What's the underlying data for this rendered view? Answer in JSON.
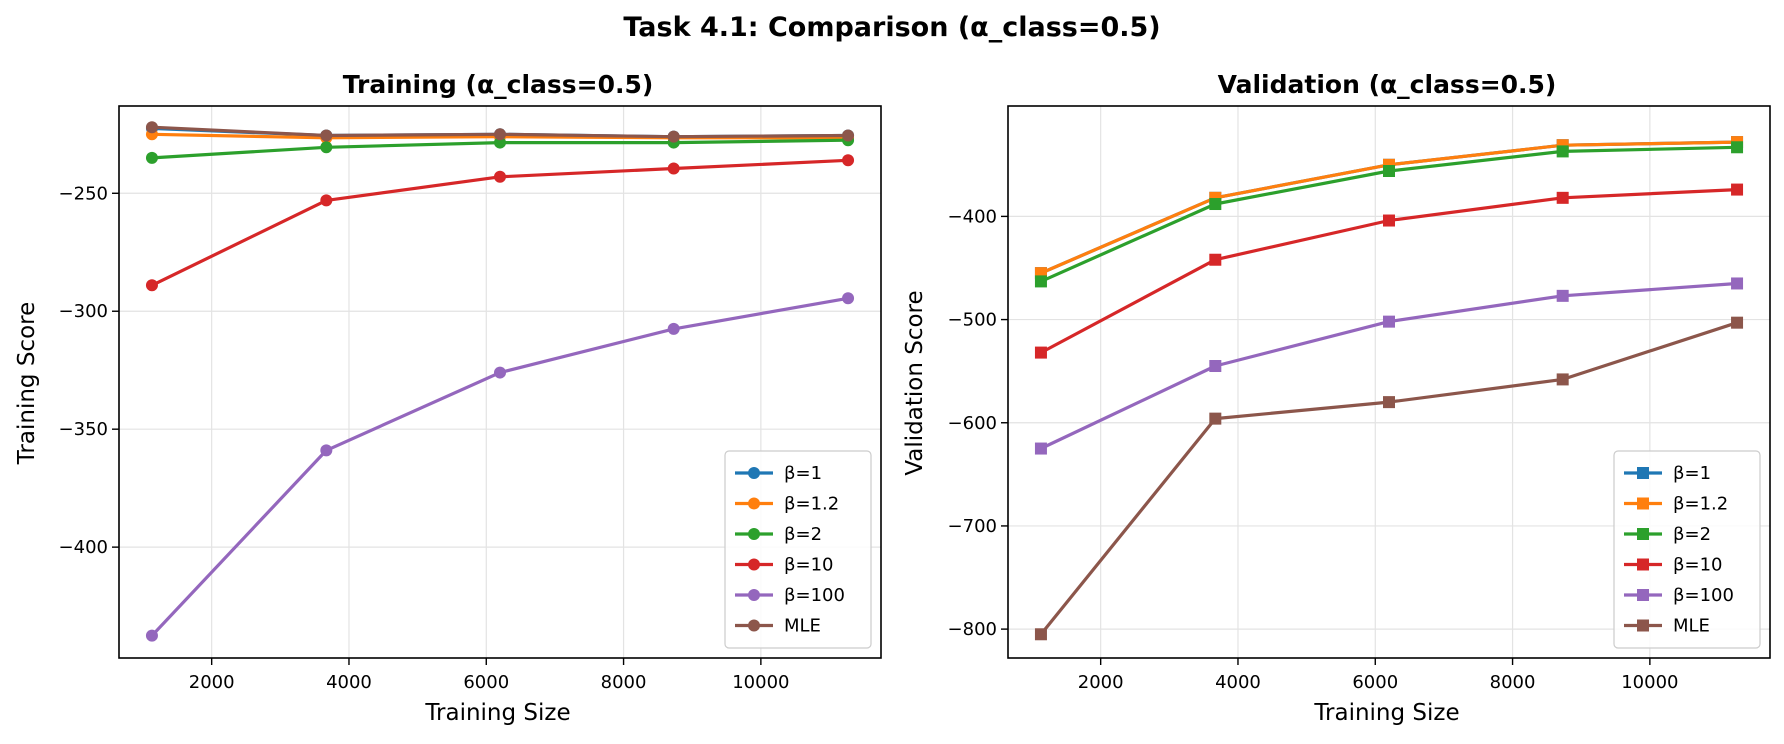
{
  "figure": {
    "title": "Task 4.1: Comparison (α_class=0.5)"
  },
  "chart_data": [
    {
      "type": "line",
      "title": "Training (α_class=0.5)",
      "xlabel": "Training Size",
      "ylabel": "Training Score",
      "xlim": [
        650,
        11750
      ],
      "ylim": [
        -447,
        -213
      ],
      "xticks": [
        2000,
        4000,
        6000,
        8000,
        10000
      ],
      "yticks": [
        -250,
        -300,
        -350,
        -400
      ],
      "xtick_labels": [
        "2000",
        "4000",
        "6000",
        "8000",
        "10000"
      ],
      "ytick_labels": [
        "−250",
        "−300",
        "−350",
        "−400"
      ],
      "grid": true,
      "marker": "circle",
      "legend_position": "lower right",
      "x": [
        1130,
        3670,
        6200,
        8730,
        11270
      ],
      "series": [
        {
          "name": "β=1",
          "color": "#1f77b4",
          "values": [
            -222.5,
            -225.5,
            -225,
            -226,
            -225.5
          ]
        },
        {
          "name": "β=1.2",
          "color": "#ff7f0e",
          "values": [
            -225,
            -226.5,
            -226,
            -226.5,
            -226.5
          ]
        },
        {
          "name": "β=2",
          "color": "#2ca02c",
          "values": [
            -235,
            -230.5,
            -228.5,
            -228.5,
            -227.5
          ]
        },
        {
          "name": "β=10",
          "color": "#d62728",
          "values": [
            -289,
            -253,
            -243,
            -239.5,
            -236
          ]
        },
        {
          "name": "β=100",
          "color": "#9467bd",
          "values": [
            -437.5,
            -359,
            -326,
            -307.5,
            -294.5
          ]
        },
        {
          "name": "MLE",
          "color": "#8c564b",
          "values": [
            -222,
            -225.5,
            -225,
            -226,
            -225.5
          ]
        }
      ]
    },
    {
      "type": "line",
      "title": "Validation (α_class=0.5)",
      "xlabel": "Training Size",
      "ylabel": "Validation Score",
      "xlim": [
        650,
        11750
      ],
      "ylim": [
        -828,
        -293
      ],
      "xticks": [
        2000,
        4000,
        6000,
        8000,
        10000
      ],
      "yticks": [
        -400,
        -500,
        -600,
        -700,
        -800
      ],
      "xtick_labels": [
        "2000",
        "4000",
        "6000",
        "8000",
        "10000"
      ],
      "ytick_labels": [
        "−400",
        "−500",
        "−600",
        "−700",
        "−800"
      ],
      "grid": true,
      "marker": "square",
      "legend_position": "lower right",
      "x": [
        1130,
        3670,
        6200,
        8730,
        11270
      ],
      "series": [
        {
          "name": "β=1",
          "color": "#1f77b4",
          "values": [
            -455,
            -382,
            -350,
            -331,
            -328
          ]
        },
        {
          "name": "β=1.2",
          "color": "#ff7f0e",
          "values": [
            -455,
            -382,
            -350,
            -331,
            -328
          ]
        },
        {
          "name": "β=2",
          "color": "#2ca02c",
          "values": [
            -463,
            -388,
            -356,
            -337,
            -333
          ]
        },
        {
          "name": "β=10",
          "color": "#d62728",
          "values": [
            -532,
            -442,
            -404,
            -382,
            -374
          ]
        },
        {
          "name": "β=100",
          "color": "#9467bd",
          "values": [
            -625,
            -545,
            -502,
            -477,
            -465
          ]
        },
        {
          "name": "MLE",
          "color": "#8c564b",
          "values": [
            -805,
            -596,
            -580,
            -558,
            -503
          ]
        }
      ]
    }
  ]
}
